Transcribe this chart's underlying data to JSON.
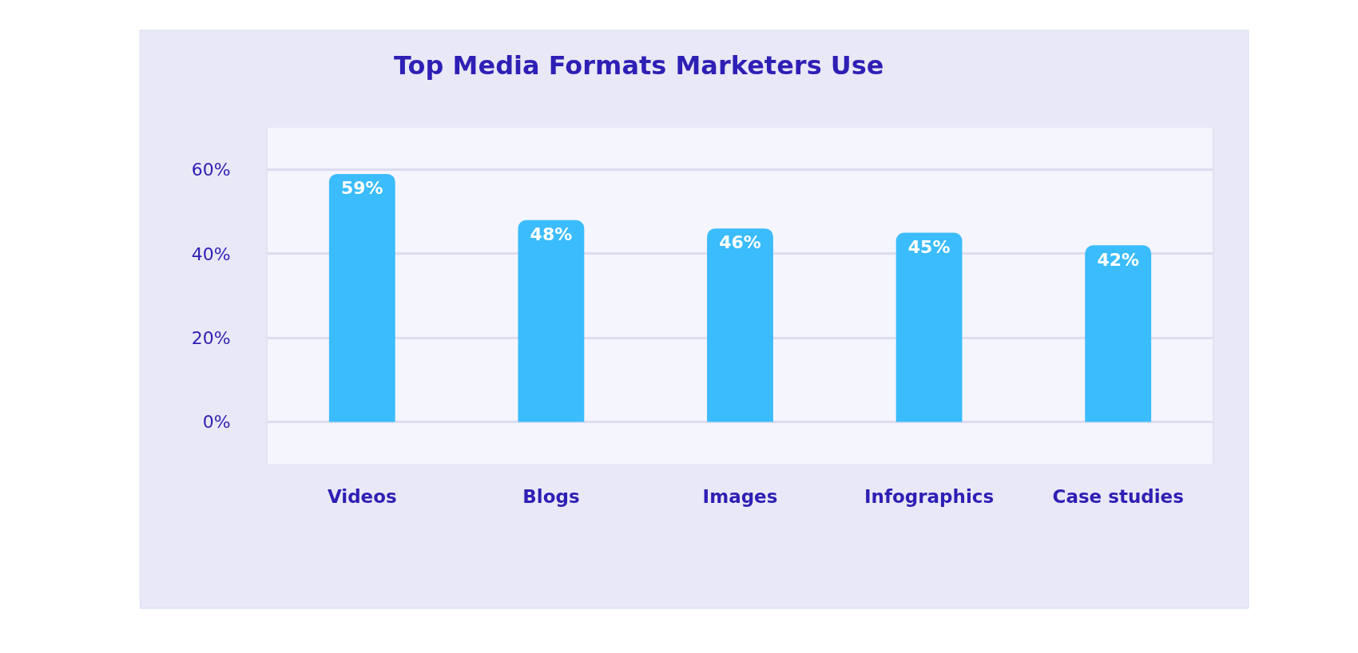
{
  "chart_data": {
    "type": "bar",
    "title": "Top Media Formats Marketers Use",
    "categories": [
      "Videos",
      "Blogs",
      "Images",
      "Infographics",
      "Case studies"
    ],
    "values": [
      59,
      48,
      46,
      45,
      42
    ],
    "color": "#3bbcfc",
    "ylim": [
      -10,
      70
    ],
    "yticks": [
      {
        "value": 0,
        "label": "0%"
      },
      {
        "value": 20,
        "label": "20%"
      },
      {
        "value": 40,
        "label": "40%"
      },
      {
        "value": 60,
        "label": "60%"
      }
    ],
    "grid": "y",
    "value_labels": [
      "59%",
      "48%",
      "46%",
      "45%",
      "42%"
    ]
  }
}
